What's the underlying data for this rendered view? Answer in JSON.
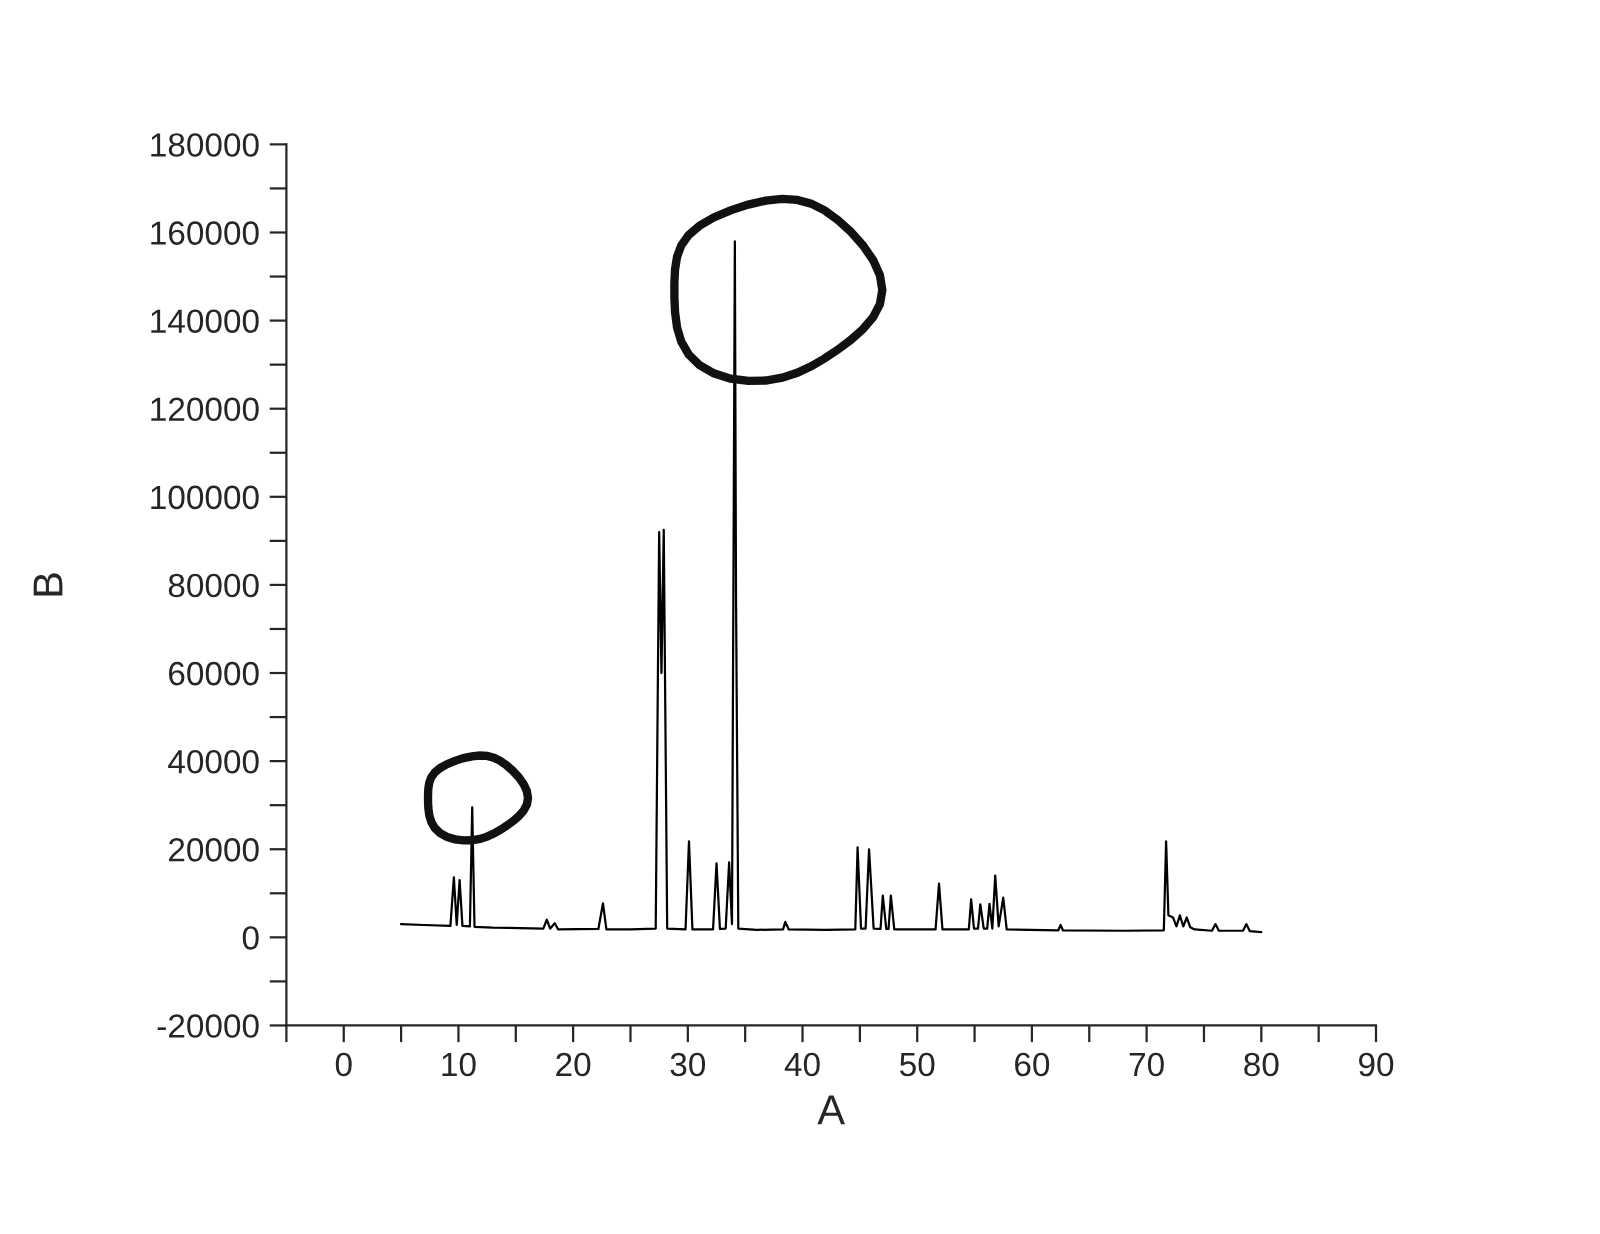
{
  "chart_data": {
    "type": "line",
    "xlabel": "A",
    "ylabel": "B",
    "xlim": [
      -5,
      90
    ],
    "ylim": [
      -20000,
      180000
    ],
    "xticks": [
      {
        "value": -5,
        "label": null
      },
      0,
      {
        "value": 5,
        "label": null
      },
      10,
      {
        "value": 15,
        "label": null
      },
      20,
      {
        "value": 25,
        "label": null
      },
      30,
      {
        "value": 35,
        "label": null
      },
      40,
      {
        "value": 45,
        "label": null
      },
      50,
      {
        "value": 55,
        "label": null
      },
      60,
      {
        "value": 65,
        "label": null
      },
      70,
      {
        "value": 75,
        "label": null
      },
      80,
      {
        "value": 85,
        "label": null
      },
      90
    ],
    "yticks": [
      -20000,
      {
        "value": -10000,
        "label": null
      },
      0,
      {
        "value": 10000,
        "label": null
      },
      20000,
      {
        "value": 30000,
        "label": null
      },
      40000,
      {
        "value": 50000,
        "label": null
      },
      60000,
      {
        "value": 70000,
        "label": null
      },
      80000,
      {
        "value": 90000,
        "label": null
      },
      100000,
      {
        "value": 110000,
        "label": null
      },
      120000,
      {
        "value": 130000,
        "label": null
      },
      140000,
      {
        "value": 150000,
        "label": null
      },
      160000,
      {
        "value": 170000,
        "label": null
      },
      180000
    ],
    "grid": false,
    "legend": false,
    "marker": "none",
    "line_style": "solid",
    "series": [
      {
        "color": "#000000",
        "x": [
          5,
          7,
          9.3,
          9.6,
          9.85,
          10.1,
          10.35,
          11.0,
          11.2,
          11.4,
          13,
          17.4,
          17.7,
          18.0,
          18.4,
          18.7,
          22.2,
          22.6,
          22.9,
          25,
          27.2,
          27.5,
          27.7,
          27.9,
          28.2,
          29.8,
          30.1,
          30.4,
          32.2,
          32.5,
          32.8,
          33.3,
          33.6,
          33.85,
          34.1,
          34.2,
          34.4,
          36,
          38.3,
          38.5,
          38.8,
          42,
          44.6,
          44.8,
          45.1,
          45.5,
          45.8,
          46.2,
          46.8,
          47.0,
          47.3,
          47.5,
          47.7,
          48.0,
          51.6,
          51.9,
          52.2,
          54.5,
          54.7,
          54.95,
          55.3,
          55.5,
          55.8,
          56.1,
          56.3,
          56.55,
          56.8,
          57.1,
          57.5,
          57.8,
          62.3,
          62.5,
          62.7,
          68,
          71.5,
          71.7,
          71.9,
          72.3,
          72.6,
          72.9,
          73.2,
          73.5,
          73.8,
          74.2,
          75.7,
          76.0,
          76.3,
          78.4,
          78.7,
          79.0,
          80
        ],
        "values": [
          3000,
          2800,
          2600,
          13600,
          2800,
          13000,
          2600,
          2500,
          29500,
          2400,
          2200,
          2000,
          4000,
          2000,
          3200,
          1800,
          1900,
          7700,
          1800,
          1800,
          2000,
          92000,
          60000,
          92500,
          2000,
          1800,
          21800,
          1800,
          1800,
          16800,
          1900,
          2000,
          17000,
          3000,
          158000,
          78000,
          2000,
          1700,
          1800,
          3500,
          1800,
          1700,
          1800,
          20400,
          2000,
          2000,
          20000,
          2000,
          1900,
          9500,
          1900,
          1900,
          9500,
          1800,
          1800,
          12200,
          1800,
          1800,
          8600,
          2000,
          2000,
          7500,
          2000,
          2000,
          7600,
          2000,
          14000,
          2500,
          9000,
          1800,
          1600,
          2800,
          1600,
          1500,
          1600,
          21800,
          5000,
          4500,
          2500,
          5000,
          2500,
          4500,
          2300,
          1800,
          1500,
          3000,
          1500,
          1500,
          3000,
          1400,
          1200
        ]
      }
    ]
  }
}
